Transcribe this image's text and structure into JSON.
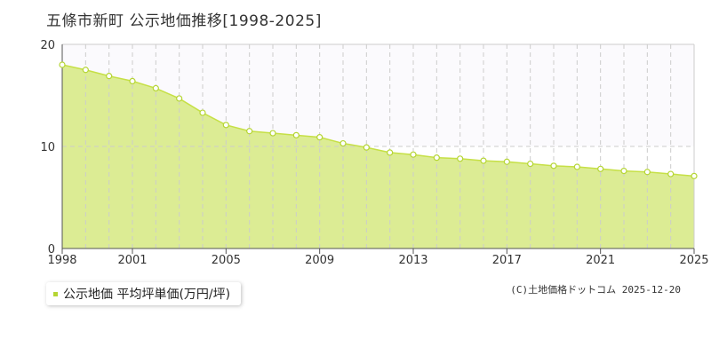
{
  "title": "五條市新町  公示地価推移[1998-2025]",
  "legend_label": "公示地価 平均坪単価(万円/坪)",
  "credit": "(C)土地価格ドットコム 2025-12-20",
  "colors": {
    "fill": "#dcec94",
    "line": "#c6e046",
    "marker": "#b5d534",
    "grid": "#cccccc",
    "axis": "#555555",
    "upper_band": "#fbfafd"
  },
  "chart_data": {
    "type": "area",
    "title": "",
    "xlabel": "",
    "ylabel": "",
    "x_tick_labels": [
      "1998",
      "2001",
      "2005",
      "2009",
      "2013",
      "2017",
      "2021",
      "2025"
    ],
    "y_tick_labels": [
      "0",
      "10",
      "20"
    ],
    "xlim": [
      1998,
      2025
    ],
    "ylim": [
      0,
      20
    ],
    "grid": true,
    "legend": "bottom-left",
    "series": [
      {
        "name": "公示地価 平均坪単価(万円/坪)",
        "x": [
          1998,
          1999,
          2000,
          2001,
          2002,
          2003,
          2004,
          2005,
          2006,
          2007,
          2008,
          2009,
          2010,
          2011,
          2012,
          2013,
          2014,
          2015,
          2016,
          2017,
          2018,
          2019,
          2020,
          2021,
          2022,
          2023,
          2024,
          2025
        ],
        "values": [
          18.0,
          17.5,
          16.9,
          16.4,
          15.7,
          14.7,
          13.3,
          12.1,
          11.5,
          11.3,
          11.1,
          10.9,
          10.3,
          9.9,
          9.4,
          9.2,
          8.9,
          8.8,
          8.6,
          8.5,
          8.3,
          8.1,
          8.0,
          7.8,
          7.6,
          7.5,
          7.3,
          7.1
        ]
      }
    ]
  }
}
